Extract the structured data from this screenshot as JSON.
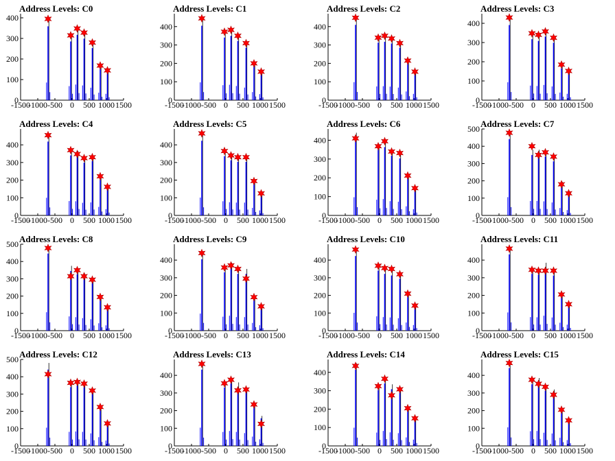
{
  "figure": {
    "xticks": [
      -1500,
      -1000,
      -500,
      0,
      500,
      1000,
      1500
    ],
    "xtick_labels": [
      "-1500",
      "-1000",
      "-500",
      "0",
      "500",
      "1000",
      "1500"
    ],
    "colors": {
      "histogram": "#0000ff",
      "spike": "#000000",
      "marker": "#ff0000",
      "marker_edge": "#b00000"
    }
  },
  "chart_data": [
    {
      "type": "bar",
      "title": "Address Levels: C0",
      "xlim": [
        -1500,
        1500
      ],
      "ylim": [
        0,
        420
      ],
      "yticks": [
        0,
        100,
        200,
        300,
        400
      ],
      "peaks": [
        {
          "x": -700,
          "y": 390
        },
        {
          "x": -40,
          "y": 310
        },
        {
          "x": 150,
          "y": 345
        },
        {
          "x": 350,
          "y": 325
        },
        {
          "x": 590,
          "y": 275
        },
        {
          "x": 820,
          "y": 165
        },
        {
          "x": 1030,
          "y": 140
        }
      ],
      "markers": [
        {
          "x": -700,
          "y": 395
        },
        {
          "x": -40,
          "y": 315
        },
        {
          "x": 150,
          "y": 348
        },
        {
          "x": 350,
          "y": 328
        },
        {
          "x": 590,
          "y": 280
        },
        {
          "x": 820,
          "y": 168
        },
        {
          "x": 1030,
          "y": 145
        }
      ]
    },
    {
      "type": "bar",
      "title": "Address Levels: C1",
      "xlim": [
        -1500,
        1500
      ],
      "ylim": [
        0,
        470
      ],
      "yticks": [
        0,
        100,
        200,
        300,
        400
      ],
      "peaks": [
        {
          "x": -700,
          "y": 440
        },
        {
          "x": -40,
          "y": 370
        },
        {
          "x": 150,
          "y": 380
        },
        {
          "x": 350,
          "y": 350
        },
        {
          "x": 590,
          "y": 310
        },
        {
          "x": 820,
          "y": 200
        },
        {
          "x": 1030,
          "y": 150
        }
      ],
      "markers": [
        {
          "x": -700,
          "y": 445
        },
        {
          "x": -40,
          "y": 372
        },
        {
          "x": 150,
          "y": 382
        },
        {
          "x": 350,
          "y": 350
        },
        {
          "x": 590,
          "y": 310
        },
        {
          "x": 820,
          "y": 200
        },
        {
          "x": 1030,
          "y": 155
        }
      ]
    },
    {
      "type": "bar",
      "title": "Address Levels: C2",
      "xlim": [
        -1500,
        1500
      ],
      "ylim": [
        0,
        470
      ],
      "yticks": [
        0,
        100,
        200,
        300,
        400
      ],
      "peaks": [
        {
          "x": -700,
          "y": 445
        },
        {
          "x": -40,
          "y": 340
        },
        {
          "x": 150,
          "y": 345
        },
        {
          "x": 350,
          "y": 335
        },
        {
          "x": 590,
          "y": 310
        },
        {
          "x": 820,
          "y": 215
        },
        {
          "x": 1030,
          "y": 155
        }
      ],
      "markers": [
        {
          "x": -700,
          "y": 448
        },
        {
          "x": -40,
          "y": 340
        },
        {
          "x": 150,
          "y": 350
        },
        {
          "x": 350,
          "y": 335
        },
        {
          "x": 590,
          "y": 310
        },
        {
          "x": 820,
          "y": 215
        },
        {
          "x": 1030,
          "y": 155
        }
      ]
    },
    {
      "type": "bar",
      "title": "Address Levels: C3",
      "xlim": [
        -1500,
        1500
      ],
      "ylim": [
        0,
        450
      ],
      "yticks": [
        0,
        100,
        200,
        300,
        400
      ],
      "peaks": [
        {
          "x": -700,
          "y": 425
        },
        {
          "x": -40,
          "y": 345
        },
        {
          "x": 150,
          "y": 335
        },
        {
          "x": 350,
          "y": 360
        },
        {
          "x": 590,
          "y": 325
        },
        {
          "x": 820,
          "y": 180
        },
        {
          "x": 1030,
          "y": 150
        }
      ],
      "markers": [
        {
          "x": -700,
          "y": 430
        },
        {
          "x": -40,
          "y": 348
        },
        {
          "x": 150,
          "y": 340
        },
        {
          "x": 350,
          "y": 358
        },
        {
          "x": 590,
          "y": 325
        },
        {
          "x": 820,
          "y": 185
        },
        {
          "x": 1030,
          "y": 152
        }
      ]
    },
    {
      "type": "bar",
      "title": "Address Levels: C4",
      "xlim": [
        -1500,
        1500
      ],
      "ylim": [
        0,
        490
      ],
      "yticks": [
        0,
        100,
        200,
        300,
        400
      ],
      "peaks": [
        {
          "x": -700,
          "y": 455
        },
        {
          "x": -40,
          "y": 370
        },
        {
          "x": 150,
          "y": 365
        },
        {
          "x": 350,
          "y": 325
        },
        {
          "x": 590,
          "y": 335
        },
        {
          "x": 820,
          "y": 220
        },
        {
          "x": 1030,
          "y": 160
        }
      ],
      "markers": [
        {
          "x": -700,
          "y": 455
        },
        {
          "x": -40,
          "y": 370
        },
        {
          "x": 150,
          "y": 348
        },
        {
          "x": 350,
          "y": 325
        },
        {
          "x": 590,
          "y": 330
        },
        {
          "x": 820,
          "y": 222
        },
        {
          "x": 1030,
          "y": 162
        }
      ]
    },
    {
      "type": "bar",
      "title": "Address Levels: C5",
      "xlim": [
        -1500,
        1500
      ],
      "ylim": [
        0,
        490
      ],
      "yticks": [
        0,
        100,
        200,
        300,
        400
      ],
      "peaks": [
        {
          "x": -700,
          "y": 460
        },
        {
          "x": -40,
          "y": 365
        },
        {
          "x": 150,
          "y": 340
        },
        {
          "x": 350,
          "y": 330
        },
        {
          "x": 590,
          "y": 330
        },
        {
          "x": 820,
          "y": 195
        },
        {
          "x": 1030,
          "y": 130
        }
      ],
      "markers": [
        {
          "x": -700,
          "y": 465
        },
        {
          "x": -40,
          "y": 365
        },
        {
          "x": 150,
          "y": 340
        },
        {
          "x": 350,
          "y": 330
        },
        {
          "x": 590,
          "y": 330
        },
        {
          "x": 820,
          "y": 195
        },
        {
          "x": 1030,
          "y": 125
        }
      ]
    },
    {
      "type": "bar",
      "title": "Address Levels: C6",
      "xlim": [
        -1500,
        1500
      ],
      "ylim": [
        0,
        460
      ],
      "yticks": [
        0,
        100,
        200,
        300,
        400
      ],
      "peaks": [
        {
          "x": -700,
          "y": 440
        },
        {
          "x": -40,
          "y": 380
        },
        {
          "x": 150,
          "y": 395
        },
        {
          "x": 350,
          "y": 345
        },
        {
          "x": 590,
          "y": 330
        },
        {
          "x": 820,
          "y": 220
        },
        {
          "x": 1030,
          "y": 150
        }
      ],
      "markers": [
        {
          "x": -700,
          "y": 410
        },
        {
          "x": -40,
          "y": 368
        },
        {
          "x": 150,
          "y": 395
        },
        {
          "x": 350,
          "y": 340
        },
        {
          "x": 590,
          "y": 332
        },
        {
          "x": 820,
          "y": 212
        },
        {
          "x": 1030,
          "y": 145
        }
      ]
    },
    {
      "type": "bar",
      "title": "Address Levels: C7",
      "xlim": [
        -1500,
        1500
      ],
      "ylim": [
        0,
        500
      ],
      "yticks": [
        0,
        100,
        200,
        300,
        400,
        500
      ],
      "peaks": [
        {
          "x": -700,
          "y": 480
        },
        {
          "x": -40,
          "y": 380
        },
        {
          "x": 150,
          "y": 380
        },
        {
          "x": 350,
          "y": 370
        },
        {
          "x": 590,
          "y": 340
        },
        {
          "x": 820,
          "y": 195
        },
        {
          "x": 1030,
          "y": 140
        }
      ],
      "markers": [
        {
          "x": -700,
          "y": 478
        },
        {
          "x": -40,
          "y": 400
        },
        {
          "x": 150,
          "y": 350
        },
        {
          "x": 350,
          "y": 365
        },
        {
          "x": 590,
          "y": 340
        },
        {
          "x": 820,
          "y": 180
        },
        {
          "x": 1030,
          "y": 128
        }
      ]
    },
    {
      "type": "bar",
      "title": "Address Levels: C8",
      "xlim": [
        -1500,
        1500
      ],
      "ylim": [
        0,
        500
      ],
      "yticks": [
        0,
        100,
        200,
        300,
        400,
        500
      ],
      "peaks": [
        {
          "x": -700,
          "y": 485
        },
        {
          "x": -40,
          "y": 375
        },
        {
          "x": 150,
          "y": 355
        },
        {
          "x": 350,
          "y": 330
        },
        {
          "x": 590,
          "y": 300
        },
        {
          "x": 820,
          "y": 195
        },
        {
          "x": 1030,
          "y": 140
        }
      ],
      "markers": [
        {
          "x": -700,
          "y": 478
        },
        {
          "x": -40,
          "y": 315
        },
        {
          "x": 150,
          "y": 350
        },
        {
          "x": 350,
          "y": 315
        },
        {
          "x": 590,
          "y": 295
        },
        {
          "x": 820,
          "y": 195
        },
        {
          "x": 1030,
          "y": 135
        }
      ]
    },
    {
      "type": "bar",
      "title": "Address Levels: C9",
      "xlim": [
        -1500,
        1500
      ],
      "ylim": [
        0,
        490
      ],
      "yticks": [
        0,
        100,
        200,
        300,
        400
      ],
      "peaks": [
        {
          "x": -700,
          "y": 440
        },
        {
          "x": -40,
          "y": 360
        },
        {
          "x": 150,
          "y": 385
        },
        {
          "x": 350,
          "y": 350
        },
        {
          "x": 590,
          "y": 350
        },
        {
          "x": 820,
          "y": 200
        },
        {
          "x": 1030,
          "y": 140
        }
      ],
      "markers": [
        {
          "x": -700,
          "y": 440
        },
        {
          "x": -40,
          "y": 358
        },
        {
          "x": 150,
          "y": 370
        },
        {
          "x": 350,
          "y": 350
        },
        {
          "x": 590,
          "y": 295
        },
        {
          "x": 820,
          "y": 190
        },
        {
          "x": 1030,
          "y": 138
        }
      ]
    },
    {
      "type": "bar",
      "title": "Address Levels: C10",
      "xlim": [
        -1500,
        1500
      ],
      "ylim": [
        0,
        490
      ],
      "yticks": [
        0,
        100,
        200,
        300,
        400
      ],
      "peaks": [
        {
          "x": -700,
          "y": 460
        },
        {
          "x": -40,
          "y": 370
        },
        {
          "x": 150,
          "y": 350
        },
        {
          "x": 350,
          "y": 340
        },
        {
          "x": 590,
          "y": 320
        },
        {
          "x": 820,
          "y": 210
        },
        {
          "x": 1030,
          "y": 145
        }
      ],
      "markers": [
        {
          "x": -700,
          "y": 460
        },
        {
          "x": -40,
          "y": 368
        },
        {
          "x": 150,
          "y": 355
        },
        {
          "x": 350,
          "y": 350
        },
        {
          "x": 590,
          "y": 320
        },
        {
          "x": 820,
          "y": 210
        },
        {
          "x": 1030,
          "y": 142
        }
      ]
    },
    {
      "type": "bar",
      "title": "Address Levels: C11",
      "xlim": [
        -1500,
        1500
      ],
      "ylim": [
        0,
        490
      ],
      "yticks": [
        0,
        100,
        200,
        300,
        400
      ],
      "peaks": [
        {
          "x": -700,
          "y": 470
        },
        {
          "x": -40,
          "y": 350
        },
        {
          "x": 150,
          "y": 345
        },
        {
          "x": 350,
          "y": 385
        },
        {
          "x": 590,
          "y": 340
        },
        {
          "x": 820,
          "y": 205
        },
        {
          "x": 1030,
          "y": 155
        }
      ],
      "markers": [
        {
          "x": -700,
          "y": 465
        },
        {
          "x": -40,
          "y": 345
        },
        {
          "x": 150,
          "y": 340
        },
        {
          "x": 350,
          "y": 340
        },
        {
          "x": 590,
          "y": 340
        },
        {
          "x": 820,
          "y": 205
        },
        {
          "x": 1030,
          "y": 150
        }
      ]
    },
    {
      "type": "bar",
      "title": "Address Levels: C12",
      "xlim": [
        -1500,
        1500
      ],
      "ylim": [
        0,
        500
      ],
      "yticks": [
        0,
        100,
        200,
        300,
        400,
        500
      ],
      "peaks": [
        {
          "x": -700,
          "y": 480
        },
        {
          "x": -40,
          "y": 370
        },
        {
          "x": 150,
          "y": 380
        },
        {
          "x": 350,
          "y": 370
        },
        {
          "x": 590,
          "y": 330
        },
        {
          "x": 820,
          "y": 230
        },
        {
          "x": 1030,
          "y": 140
        }
      ],
      "markers": [
        {
          "x": -700,
          "y": 415
        },
        {
          "x": -40,
          "y": 365
        },
        {
          "x": 150,
          "y": 370
        },
        {
          "x": 350,
          "y": 360
        },
        {
          "x": 590,
          "y": 320
        },
        {
          "x": 820,
          "y": 225
        },
        {
          "x": 1030,
          "y": 130
        }
      ]
    },
    {
      "type": "bar",
      "title": "Address Levels: C13",
      "xlim": [
        -1500,
        1500
      ],
      "ylim": [
        0,
        490
      ],
      "yticks": [
        0,
        100,
        200,
        300,
        400
      ],
      "peaks": [
        {
          "x": -700,
          "y": 470
        },
        {
          "x": -40,
          "y": 360
        },
        {
          "x": 150,
          "y": 385
        },
        {
          "x": 350,
          "y": 360
        },
        {
          "x": 590,
          "y": 330
        },
        {
          "x": 820,
          "y": 240
        },
        {
          "x": 1030,
          "y": 170
        }
      ],
      "markers": [
        {
          "x": -700,
          "y": 465
        },
        {
          "x": -40,
          "y": 355
        },
        {
          "x": 150,
          "y": 375
        },
        {
          "x": 350,
          "y": 315
        },
        {
          "x": 590,
          "y": 320
        },
        {
          "x": 820,
          "y": 235
        },
        {
          "x": 1030,
          "y": 125
        }
      ]
    },
    {
      "type": "bar",
      "title": "Address Levels: C14",
      "xlim": [
        -1500,
        1500
      ],
      "ylim": [
        0,
        470
      ],
      "yticks": [
        0,
        100,
        200,
        300,
        400
      ],
      "peaks": [
        {
          "x": -700,
          "y": 450
        },
        {
          "x": -40,
          "y": 330
        },
        {
          "x": 150,
          "y": 370
        },
        {
          "x": 350,
          "y": 335
        },
        {
          "x": 590,
          "y": 315
        },
        {
          "x": 820,
          "y": 210
        },
        {
          "x": 1030,
          "y": 155
        }
      ],
      "markers": [
        {
          "x": -700,
          "y": 435
        },
        {
          "x": -40,
          "y": 325
        },
        {
          "x": 150,
          "y": 365
        },
        {
          "x": 350,
          "y": 275
        },
        {
          "x": 590,
          "y": 308
        },
        {
          "x": 820,
          "y": 205
        },
        {
          "x": 1030,
          "y": 150
        }
      ]
    },
    {
      "type": "bar",
      "title": "Address Levels: C15",
      "xlim": [
        -1500,
        1500
      ],
      "ylim": [
        0,
        490
      ],
      "yticks": [
        0,
        100,
        200,
        300,
        400
      ],
      "peaks": [
        {
          "x": -700,
          "y": 480
        },
        {
          "x": -40,
          "y": 380
        },
        {
          "x": 150,
          "y": 385
        },
        {
          "x": 350,
          "y": 340
        },
        {
          "x": 590,
          "y": 320
        },
        {
          "x": 820,
          "y": 210
        },
        {
          "x": 1030,
          "y": 150
        }
      ],
      "markers": [
        {
          "x": -700,
          "y": 470
        },
        {
          "x": -40,
          "y": 375
        },
        {
          "x": 150,
          "y": 352
        },
        {
          "x": 350,
          "y": 335
        },
        {
          "x": 590,
          "y": 290
        },
        {
          "x": 820,
          "y": 205
        },
        {
          "x": 1030,
          "y": 145
        }
      ]
    }
  ]
}
